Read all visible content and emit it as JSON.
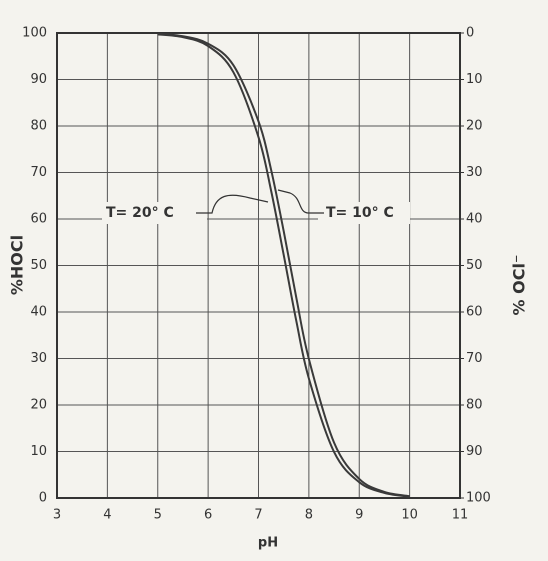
{
  "chart_data": {
    "type": "line",
    "x": [
      5,
      5.5,
      6,
      6.5,
      7,
      7.25,
      7.5,
      7.75,
      8,
      8.5,
      9,
      9.5,
      10
    ],
    "series": [
      {
        "name": "T= 20° C",
        "color": "#3a3a3a",
        "values": [
          99.7,
          99.1,
          97.2,
          91.6,
          77.6,
          66.1,
          52.3,
          38.1,
          25.7,
          9.9,
          3.4,
          1.1,
          0.3
        ]
      },
      {
        "name": "T= 10° C",
        "color": "#3a3a3a",
        "values": [
          99.8,
          99.3,
          97.7,
          93.1,
          81.0,
          70.6,
          57.4,
          43.1,
          29.9,
          11.9,
          4.1,
          1.3,
          0.4
        ]
      }
    ],
    "xlabel": "pH",
    "ylabel": "%HOCl",
    "y2label": "% OCl⁻",
    "xlim": [
      3,
      11
    ],
    "xticks": [
      3,
      4,
      5,
      6,
      7,
      8,
      9,
      10,
      11
    ],
    "ylim": [
      0,
      100
    ],
    "yticks": [
      0,
      10,
      20,
      30,
      40,
      50,
      60,
      70,
      80,
      90,
      100
    ],
    "y2lim": [
      100,
      0
    ],
    "y2ticks": [
      100,
      90,
      80,
      70,
      60,
      50,
      40,
      30,
      20,
      10,
      0
    ],
    "grid": true
  }
}
